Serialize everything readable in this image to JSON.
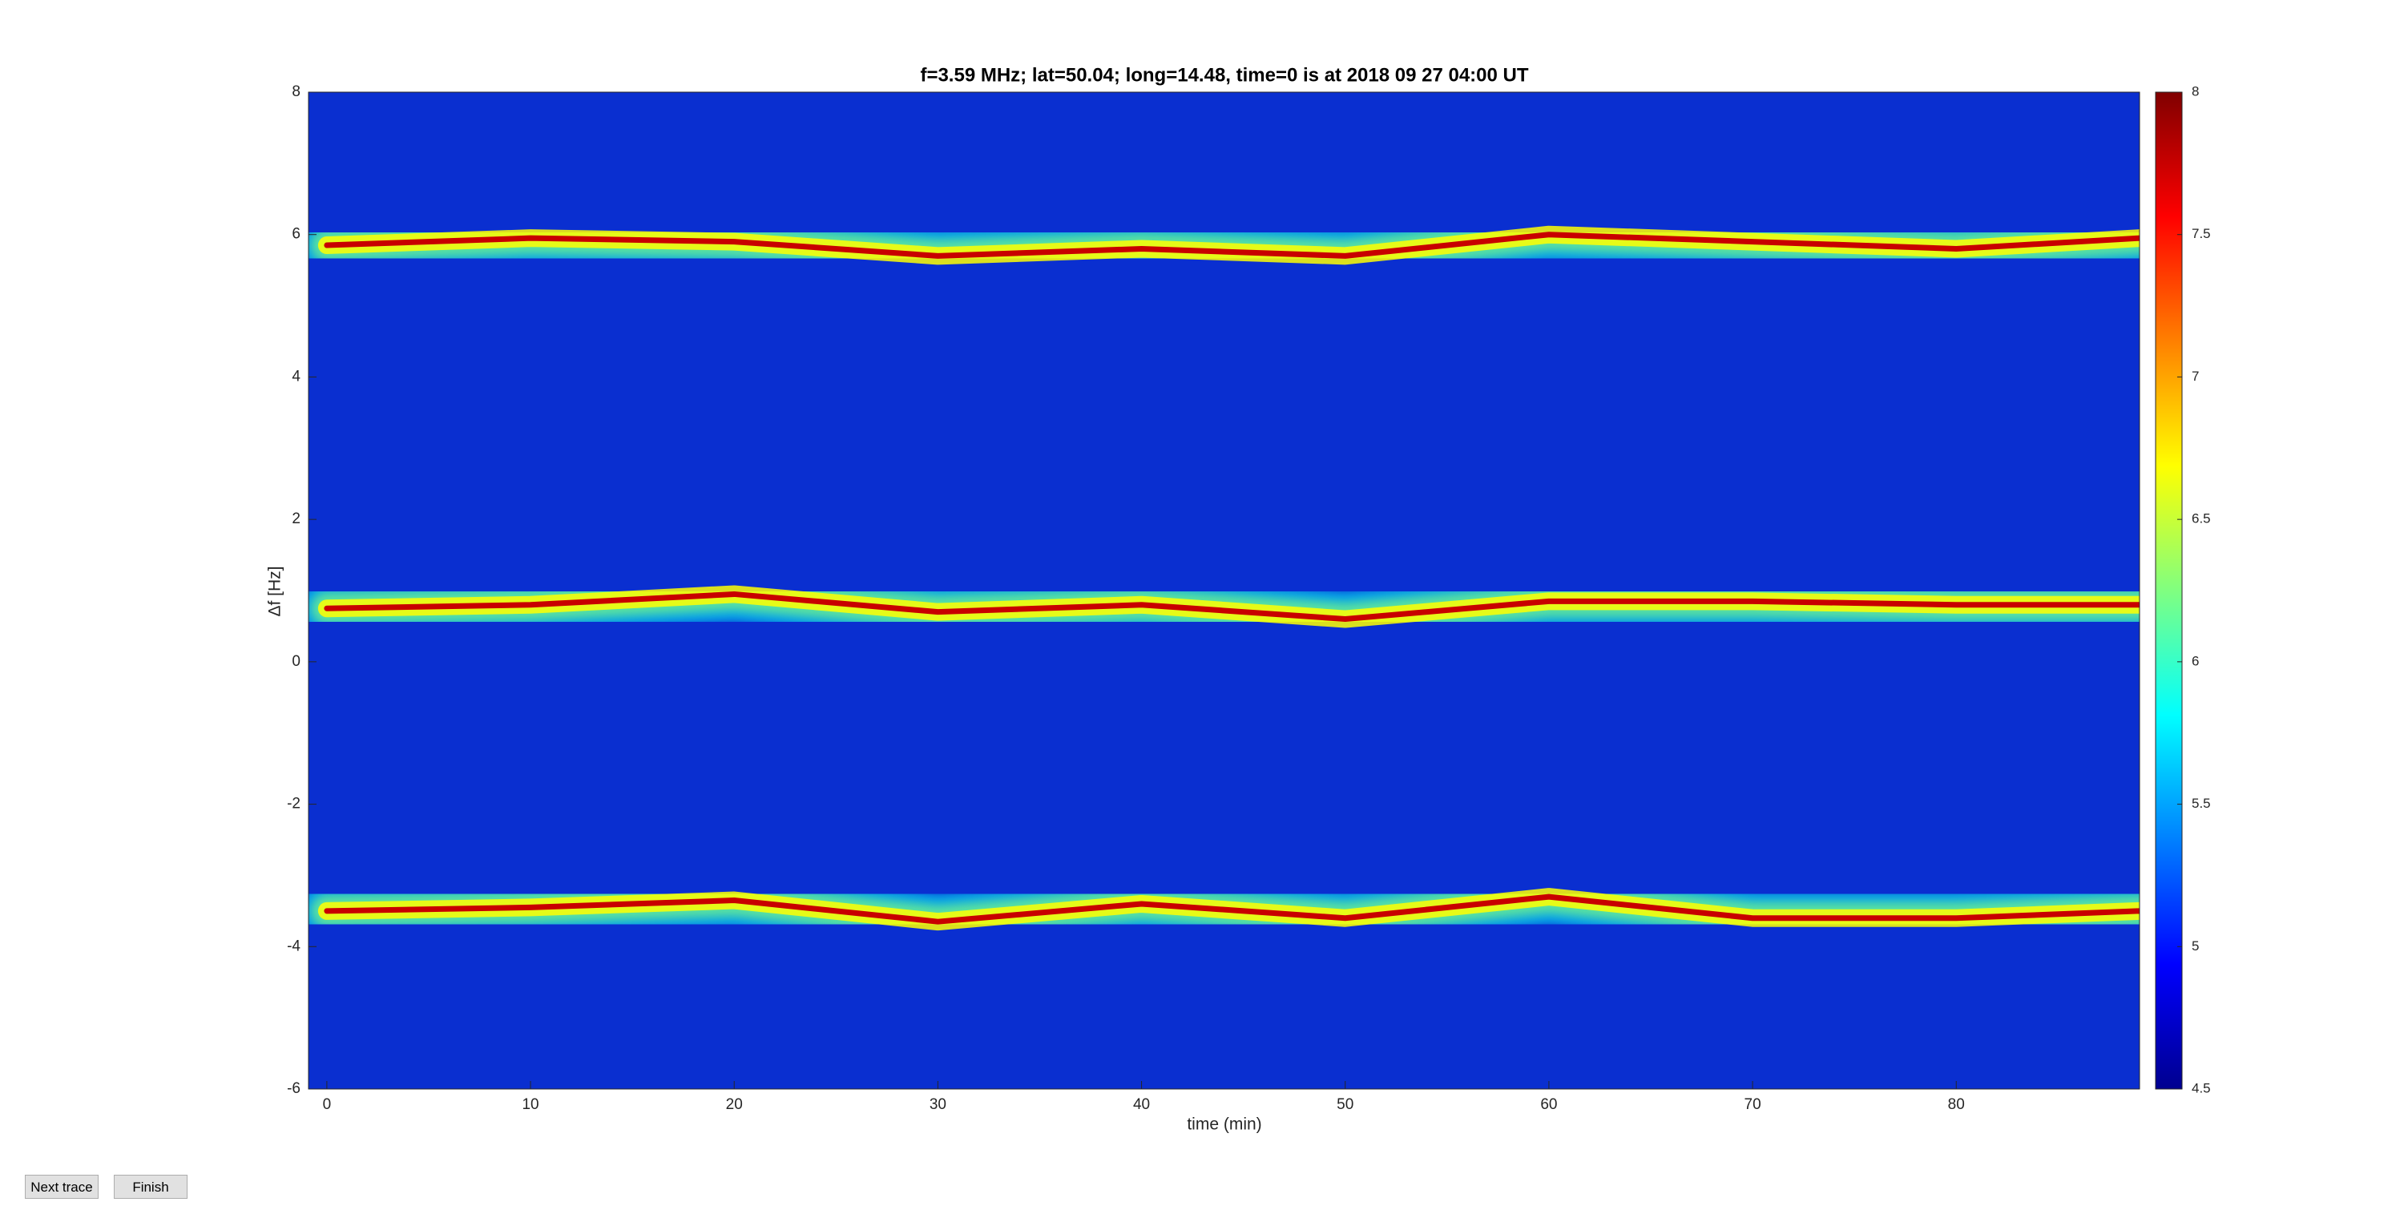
{
  "chart_data": {
    "type": "spectrogram",
    "title": "f=3.59 MHz;  lat=50.04; long=14.48, time=0 is at 2018 09 27 04:00 UT",
    "xlabel": "time (min)",
    "ylabel": "Δf [Hz]",
    "x": [
      0,
      10,
      20,
      30,
      40,
      50,
      60,
      70,
      80,
      89
    ],
    "series": [
      {
        "color": "#c80000",
        "values": [
          5.85,
          5.95,
          5.9,
          5.7,
          5.8,
          5.7,
          6.0,
          5.9,
          5.8,
          5.95
        ]
      },
      {
        "color": "#c80000",
        "values": [
          0.75,
          0.8,
          0.95,
          0.7,
          0.8,
          0.6,
          0.85,
          0.85,
          0.8,
          0.8
        ]
      },
      {
        "color": "#c80000",
        "values": [
          -3.5,
          -3.45,
          -3.35,
          -3.65,
          -3.4,
          -3.6,
          -3.3,
          -3.6,
          -3.6,
          -3.5
        ]
      }
    ],
    "xlim": [
      -0.9,
      89
    ],
    "xticks": [
      0,
      10,
      20,
      30,
      40,
      50,
      60,
      70,
      80
    ],
    "ylim": [
      -6,
      8
    ],
    "yticks": [
      -6,
      -4,
      -2,
      0,
      2,
      4,
      6,
      8
    ],
    "clim": [
      4.5,
      8
    ],
    "cticks": [
      4.5,
      5,
      5.5,
      6,
      6.5,
      7,
      7.5,
      8
    ],
    "colormap": [
      "#00008f",
      "#0000ff",
      "#0080ff",
      "#00ffff",
      "#80ff80",
      "#ffff00",
      "#ff8000",
      "#ff0000",
      "#800000"
    ],
    "background": "#0a2fd0"
  },
  "buttons": [
    "Next trace",
    "Finish"
  ]
}
